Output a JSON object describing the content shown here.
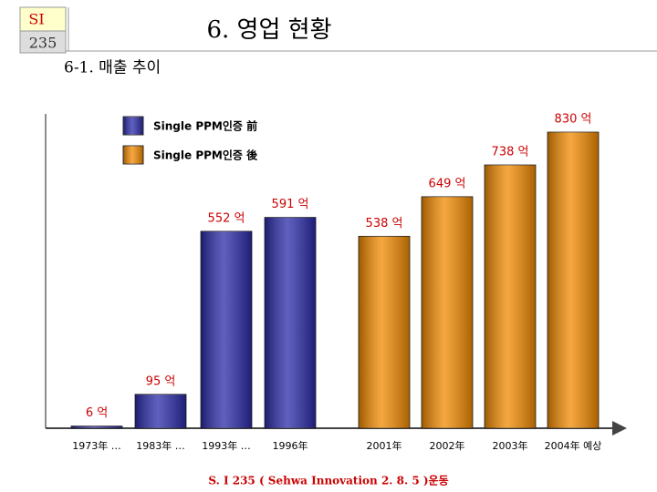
{
  "header": {
    "badge_top": "SI",
    "badge_bottom": "235",
    "title": "6. 영업 현황",
    "subtitle": "6-1. 매출 추이"
  },
  "chart_data": {
    "type": "bar",
    "categories": [
      "1973年 …",
      "1983年 …",
      "1993年 …",
      "1996年",
      "2001年",
      "2002年",
      "2003年",
      "2004年 예상"
    ],
    "series": [
      {
        "name": "Single PPM인증 前",
        "color": "#2a2aa8",
        "values": [
          6,
          95,
          552,
          591,
          null,
          null,
          null,
          null
        ],
        "value_labels": [
          "6 억",
          "95 억",
          "552 억",
          "591 억",
          null,
          null,
          null,
          null
        ]
      },
      {
        "name": "Single PPM인증 後",
        "color": "#f28a00",
        "values": [
          null,
          null,
          null,
          null,
          538,
          649,
          738,
          830
        ],
        "value_labels": [
          null,
          null,
          null,
          null,
          "538 억",
          "649 억",
          "738 억",
          "830 억"
        ]
      }
    ]
  },
  "footer": "S. I 235 ( Sehwa Innovation 2. 8. 5 )운동"
}
